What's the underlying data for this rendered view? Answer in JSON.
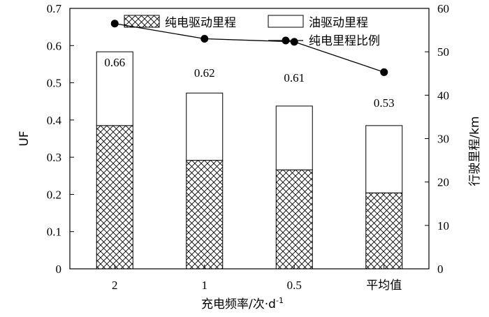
{
  "chart_data": {
    "type": "bar",
    "categories": [
      "2",
      "1",
      "0.5",
      "平均值"
    ],
    "xlabel": "充电频率/次·d",
    "xlabel_sup": "-1",
    "ylabel_left": "UF",
    "ylabel_right": "行驶里程/km",
    "ylim_left": [
      0,
      0.7
    ],
    "yticks_left": [
      "0",
      "0.1",
      "0.2",
      "0.3",
      "0.4",
      "0.5",
      "0.6",
      "0.7"
    ],
    "ylim_right": [
      0,
      60
    ],
    "yticks_right": [
      "0",
      "10",
      "20",
      "30",
      "40",
      "50",
      "60"
    ],
    "series": [
      {
        "name": "纯电驱动里程",
        "axis": "right",
        "kind": "stacked-bar",
        "pattern": "crosshatch",
        "values": [
          33,
          25,
          22.8,
          17.5
        ]
      },
      {
        "name": "油驱动里程",
        "axis": "right",
        "kind": "stacked-bar",
        "pattern": "none",
        "values": [
          17,
          15.5,
          14.7,
          15.5
        ]
      },
      {
        "name": "纯电里程比例",
        "axis": "right",
        "kind": "line",
        "marker": "circle",
        "values": [
          56.5,
          53,
          52.3,
          45.3
        ],
        "labels": [
          "0.66",
          "0.62",
          "0.61",
          "0.53"
        ]
      }
    ],
    "legend_position": "top-inside",
    "grid": false
  }
}
